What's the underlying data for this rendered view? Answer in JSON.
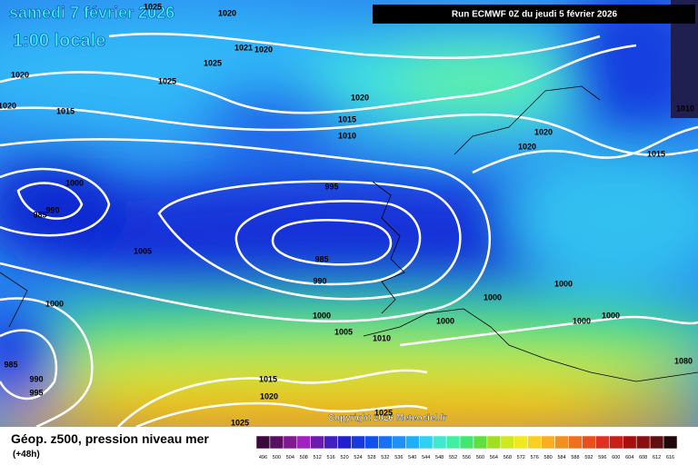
{
  "header": {
    "date": "samedi 7 février 2026",
    "time": "1:00 locale",
    "run": "Run ECMWF 0Z du jeudi 5 février 2026"
  },
  "isobar_labels": [
    "1025",
    "1020",
    "1020",
    "1020",
    "1025",
    "1025",
    "1021",
    "1020",
    "1015",
    "1020",
    "1015",
    "1010",
    "1000",
    "995",
    "990",
    "985",
    "1005",
    "985",
    "990",
    "1000",
    "1000",
    "1005",
    "1010",
    "1000",
    "1000",
    "1000",
    "1000",
    "1000",
    "1020",
    "1020",
    "1010",
    "1015",
    "1015",
    "1020",
    "985",
    "990",
    "995",
    "1025",
    "1025",
    "1080"
  ],
  "copyright": "Copyright 2026 Meteociel.fr",
  "footer": {
    "title": "Géop. z500, pression niveau mer",
    "lead": "(+48h)"
  },
  "colorbar": {
    "labels": [
      "496",
      "500",
      "504",
      "508",
      "512",
      "516",
      "520",
      "524",
      "528",
      "532",
      "536",
      "540",
      "544",
      "548",
      "552",
      "556",
      "560",
      "564",
      "568",
      "572",
      "576",
      "580",
      "584",
      "588",
      "592",
      "596",
      "600",
      "604",
      "608",
      "612",
      "616"
    ],
    "colors": [
      "#3a0a3a",
      "#5a1060",
      "#801a90",
      "#a020c0",
      "#6a1ab0",
      "#4020c0",
      "#2020d0",
      "#1838e0",
      "#1050f0",
      "#1870f8",
      "#2090f8",
      "#20b0f8",
      "#30d0f0",
      "#40e8d0",
      "#40f0a0",
      "#40e870",
      "#60e040",
      "#a0e020",
      "#d0e820",
      "#f0e820",
      "#f8d020",
      "#f8b020",
      "#f09020",
      "#f07020",
      "#e85020",
      "#e03020",
      "#c82018",
      "#a81010",
      "#881010",
      "#601010",
      "#200808"
    ]
  }
}
